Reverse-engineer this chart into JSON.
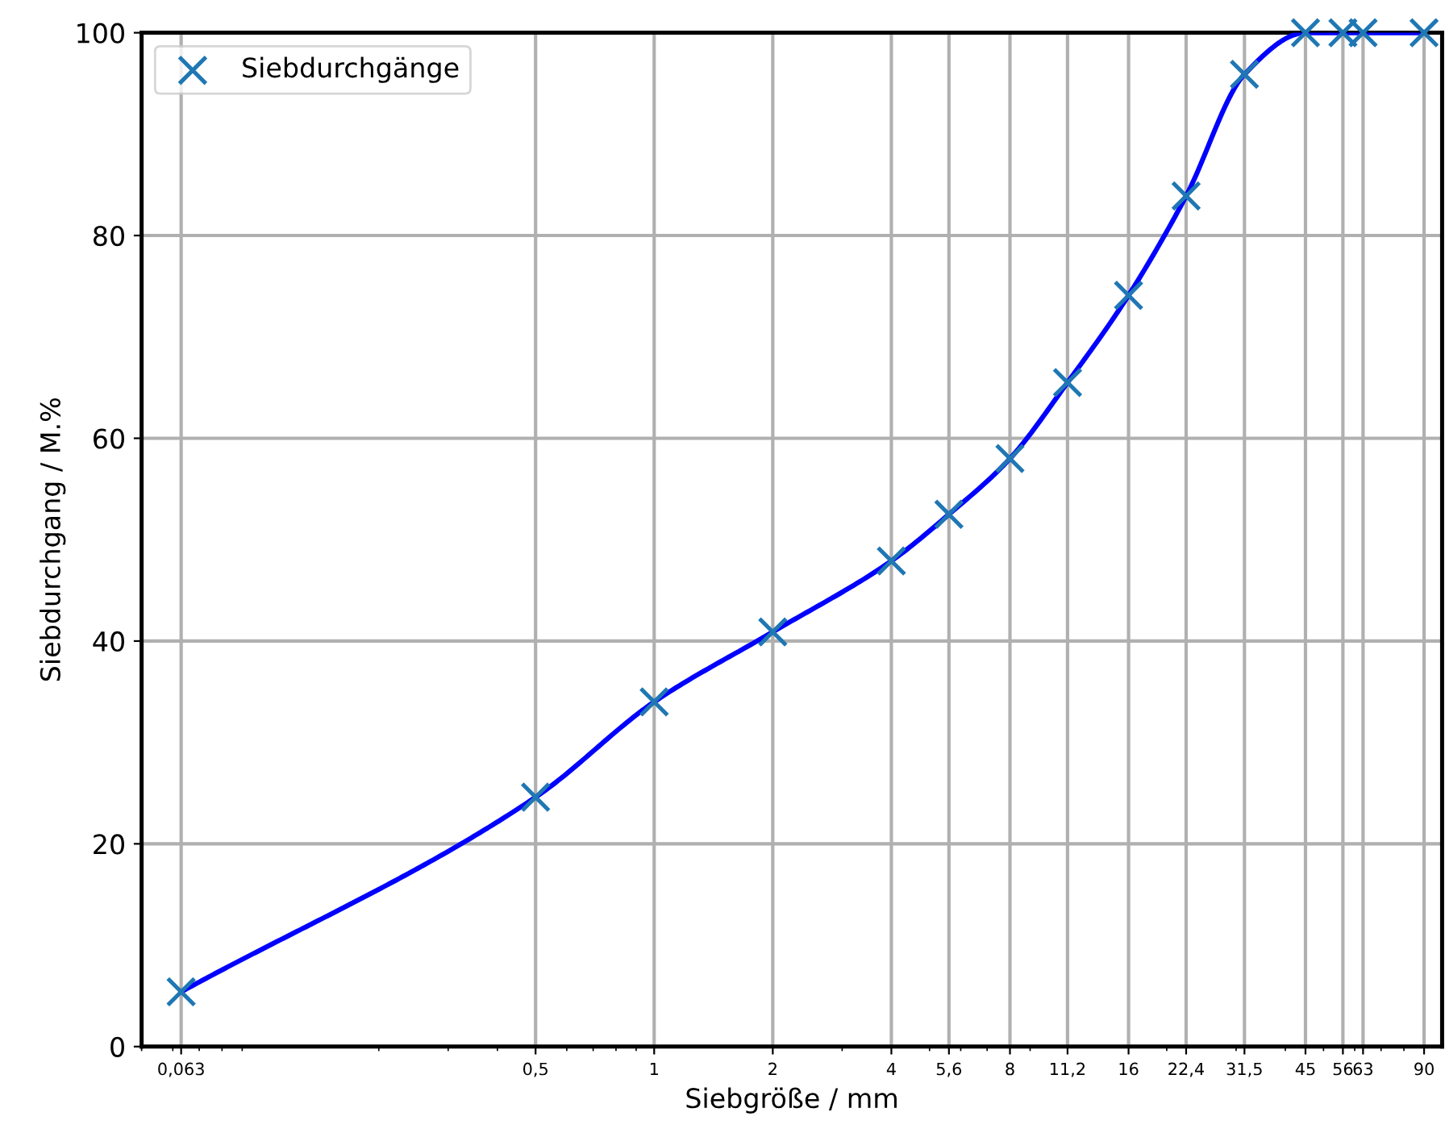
{
  "chart_data": {
    "type": "line",
    "xlabel": "Siebgröße / mm",
    "ylabel": "Siebdurchgang / M.%",
    "log": "x",
    "xlim": [
      0.05,
      100
    ],
    "ylim": [
      0,
      100
    ],
    "xticks": [
      {
        "value": 0.063,
        "label": "0,063"
      },
      {
        "value": 0.5,
        "label": "0,5"
      },
      1,
      2,
      4,
      {
        "value": 5.6,
        "label": "5,6"
      },
      8,
      {
        "value": 11.2,
        "label": "11,2"
      },
      16,
      {
        "value": 22.4,
        "label": "22,4"
      },
      {
        "value": 31.5,
        "label": "31,5"
      },
      45,
      56,
      63,
      90
    ],
    "yticks": [
      0,
      20,
      40,
      60,
      80,
      100
    ],
    "grid": true,
    "legend": "top left",
    "series": [
      {
        "color": "#0000ff",
        "line_style": "solid",
        "marker": "none",
        "x": [
          0.063,
          0.5,
          1,
          2,
          4,
          5.6,
          8,
          11.2,
          16,
          22.4,
          31.5,
          45,
          56,
          63,
          90
        ],
        "values": [
          5.4,
          24.6,
          34.0,
          40.9,
          47.9,
          52.5,
          58.0,
          65.5,
          74.1,
          83.9,
          95.9,
          100,
          100,
          100,
          100
        ]
      },
      {
        "type": "scatter",
        "name": "Siebdurchgänge",
        "color": "#1f77b4",
        "marker": "cross",
        "x": [
          0.063,
          0.5,
          1,
          2,
          4,
          5.6,
          8,
          11.2,
          16,
          22.4,
          31.5,
          45,
          56,
          63,
          90
        ],
        "values": [
          5.4,
          24.6,
          34.0,
          40.9,
          47.9,
          52.5,
          58.0,
          65.5,
          74.1,
          83.9,
          95.9,
          100,
          100,
          100,
          100
        ]
      }
    ]
  }
}
